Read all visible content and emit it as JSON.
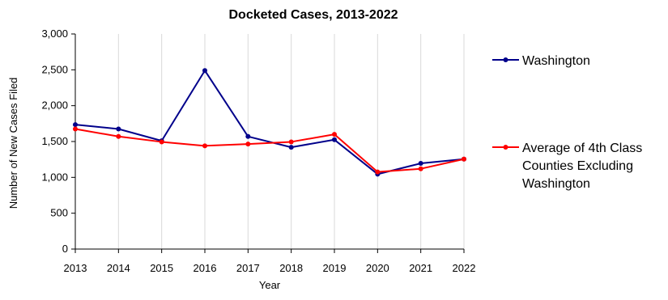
{
  "chart_data": {
    "type": "line",
    "title": "Docketed Cases, 2013-2022",
    "xlabel": "Year",
    "ylabel": "Number of New Cases Filed",
    "x": [
      "2013",
      "2014",
      "2015",
      "2016",
      "2017",
      "2018",
      "2019",
      "2020",
      "2021",
      "2022"
    ],
    "ylim": [
      0,
      3000
    ],
    "yticks": [
      0,
      500,
      1000,
      1500,
      2000,
      2500,
      3000
    ],
    "ytick_labels": [
      "0",
      "500",
      "1,000",
      "1,500",
      "2,000",
      "2,500",
      "3,000"
    ],
    "grid": "vertical",
    "legend_position": "right",
    "series": [
      {
        "name": "Washington",
        "color": "#00008B",
        "values": [
          1735,
          1675,
          1510,
          2490,
          1570,
          1420,
          1525,
          1045,
          1195,
          1255
        ]
      },
      {
        "name": "Average of 4th Class Counties Excluding Washington",
        "legend_lines": [
          "Average of 4th Class",
          "Counties Excluding",
          "Washington"
        ],
        "color": "#FF0000",
        "values": [
          1675,
          1570,
          1495,
          1440,
          1465,
          1495,
          1600,
          1075,
          1120,
          1255
        ]
      }
    ]
  }
}
